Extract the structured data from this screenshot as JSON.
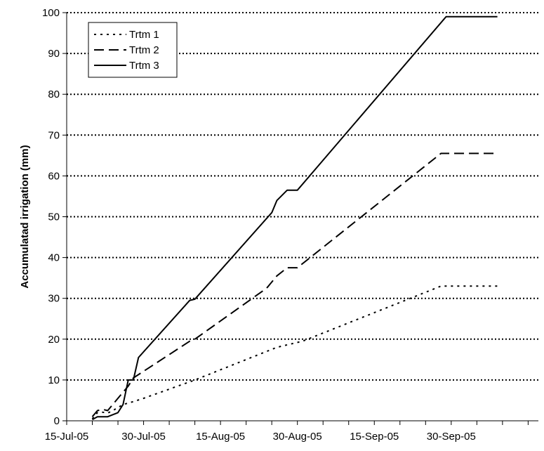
{
  "chart_data": {
    "type": "line",
    "title": "",
    "xlabel": "",
    "ylabel": "Accumulatad irrigation (mm)",
    "x_axis": {
      "kind": "date",
      "range": [
        "2005-07-15",
        "2005-10-15"
      ],
      "tick_labels": [
        "15-Jul-05",
        "30-Jul-05",
        "15-Aug-05",
        "30-Aug-05",
        "15-Sep-05",
        "30-Sep-05"
      ]
    },
    "ylim": [
      0,
      100
    ],
    "y_ticks": [
      0,
      10,
      20,
      30,
      40,
      50,
      60,
      70,
      80,
      90,
      100
    ],
    "grid": "horizontal dotted",
    "legend_position": "top-left",
    "series": [
      {
        "name": "Trtm 1",
        "style": "dotted",
        "points": [
          [
            "2005-07-20",
            0.5
          ],
          [
            "2005-07-21",
            2.0
          ],
          [
            "2005-07-22",
            2.1
          ],
          [
            "2005-07-23",
            1.9
          ],
          [
            "2005-07-24",
            2.5
          ],
          [
            "2005-07-26",
            4.0
          ],
          [
            "2005-07-28",
            4.7
          ],
          [
            "2005-07-30",
            5.5
          ],
          [
            "2005-08-09",
            10.0
          ],
          [
            "2005-08-25",
            18.0
          ],
          [
            "2005-08-30",
            19.5
          ],
          [
            "2005-09-26",
            33.0
          ],
          [
            "2005-10-07",
            33.0
          ]
        ]
      },
      {
        "name": "Trtm 2",
        "style": "dashed",
        "points": [
          [
            "2005-07-20",
            1.0
          ],
          [
            "2005-07-21",
            2.5
          ],
          [
            "2005-07-22",
            2.8
          ],
          [
            "2005-07-23",
            2.5
          ],
          [
            "2005-07-26",
            7.0
          ],
          [
            "2005-07-27",
            8.5
          ],
          [
            "2005-07-28",
            10.5
          ],
          [
            "2005-08-08",
            19.5
          ],
          [
            "2005-08-09",
            20.0
          ],
          [
            "2005-08-23",
            32.5
          ],
          [
            "2005-08-25",
            35.5
          ],
          [
            "2005-08-27",
            37.5
          ],
          [
            "2005-08-29",
            37.5
          ],
          [
            "2005-09-26",
            65.5
          ],
          [
            "2005-10-07",
            65.5
          ]
        ]
      },
      {
        "name": "Trtm 3",
        "style": "solid",
        "points": [
          [
            "2005-07-20",
            0.3
          ],
          [
            "2005-07-21",
            1.0
          ],
          [
            "2005-07-23",
            1.0
          ],
          [
            "2005-07-25",
            2.0
          ],
          [
            "2005-07-26",
            4.0
          ],
          [
            "2005-07-27",
            10.0
          ],
          [
            "2005-07-28",
            10.0
          ],
          [
            "2005-07-29",
            15.5
          ],
          [
            "2005-08-08",
            29.5
          ],
          [
            "2005-08-09",
            29.8
          ],
          [
            "2005-08-24",
            51.0
          ],
          [
            "2005-08-25",
            54.0
          ],
          [
            "2005-08-27",
            56.5
          ],
          [
            "2005-08-29",
            56.5
          ],
          [
            "2005-09-27",
            99.0
          ],
          [
            "2005-10-07",
            99.0
          ]
        ]
      }
    ]
  }
}
